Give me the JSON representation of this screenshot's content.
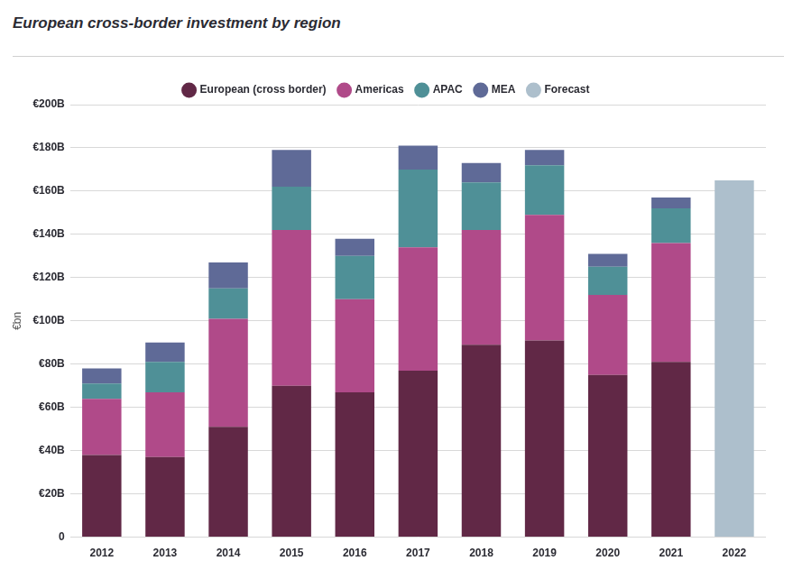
{
  "chart_data": {
    "type": "bar",
    "title": "European cross-border investment by region",
    "y_label": "€bn",
    "categories": [
      "2012",
      "2013",
      "2014",
      "2015",
      "2016",
      "2017",
      "2018",
      "2019",
      "2020",
      "2021",
      "2022"
    ],
    "series": [
      {
        "name": "European (cross border)",
        "color": "#612846",
        "values": [
          38,
          37,
          51,
          70,
          67,
          77,
          89,
          91,
          75,
          81,
          null
        ]
      },
      {
        "name": "Americas",
        "color": "#b04a89",
        "values": [
          26,
          30,
          50,
          72,
          43,
          57,
          53,
          58,
          37,
          55,
          null
        ]
      },
      {
        "name": "APAC",
        "color": "#4f9097",
        "values": [
          7,
          14,
          14,
          20,
          20,
          36,
          22,
          23,
          13,
          16,
          null
        ]
      },
      {
        "name": "MEA",
        "color": "#5f6a97",
        "values": [
          7,
          9,
          12,
          17,
          8,
          11,
          9,
          7,
          6,
          5,
          null
        ]
      },
      {
        "name": "Forecast",
        "color": "#adbfcc",
        "values": [
          null,
          null,
          null,
          null,
          null,
          null,
          null,
          null,
          null,
          null,
          165
        ]
      }
    ],
    "ylim": [
      0,
      200
    ],
    "yticks": [
      {
        "value": 0,
        "label": "0"
      },
      {
        "value": 20,
        "label": "€20B"
      },
      {
        "value": 40,
        "label": "€40B"
      },
      {
        "value": 60,
        "label": "€60B"
      },
      {
        "value": 80,
        "label": "€80B"
      },
      {
        "value": 100,
        "label": "€100B"
      },
      {
        "value": 120,
        "label": "€120B"
      },
      {
        "value": 140,
        "label": "€140B"
      },
      {
        "value": 160,
        "label": "€160B"
      },
      {
        "value": 180,
        "label": "€180B"
      },
      {
        "value": 200,
        "label": "€200B"
      }
    ],
    "grid": true,
    "stacked": true,
    "legend": "top"
  }
}
